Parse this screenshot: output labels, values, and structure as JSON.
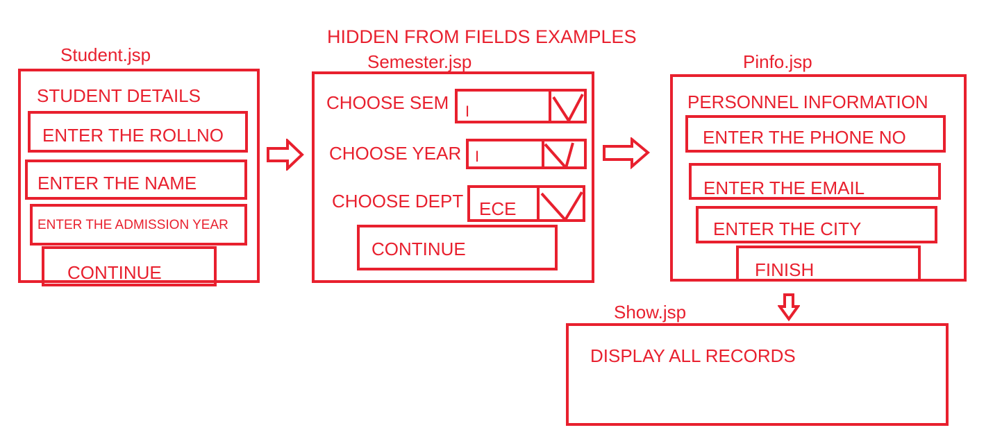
{
  "heading": "HIDDEN FROM FIELDS EXAMPLES",
  "colors": {
    "ink": "#e8202e",
    "background": "#ffffff"
  },
  "student_page": {
    "file": "Student.jsp",
    "title": "STUDENT DETAILS",
    "fields": [
      "ENTER THE ROLLNO",
      "ENTER THE NAME",
      "ENTER THE ADMISSION YEAR"
    ],
    "button": "CONTINUE"
  },
  "semester_page": {
    "file": "Semester.jsp",
    "rows": [
      {
        "label": "CHOOSE SEM",
        "value": "I"
      },
      {
        "label": "CHOOSE YEAR",
        "value": "I"
      },
      {
        "label": "CHOOSE DEPT",
        "value": "ECE"
      }
    ],
    "button": "CONTINUE"
  },
  "pinfo_page": {
    "file": "Pinfo.jsp",
    "title": "PERSONNEL INFORMATION",
    "fields": [
      "ENTER THE PHONE NO",
      "ENTER THE EMAIL",
      "ENTER THE CITY"
    ],
    "button": "FINISH"
  },
  "show_page": {
    "file": "Show.jsp",
    "text": "DISPLAY ALL RECORDS"
  },
  "icons": [
    "arrow-right-icon",
    "arrow-right-icon",
    "arrow-down-icon",
    "dropdown-icon"
  ]
}
